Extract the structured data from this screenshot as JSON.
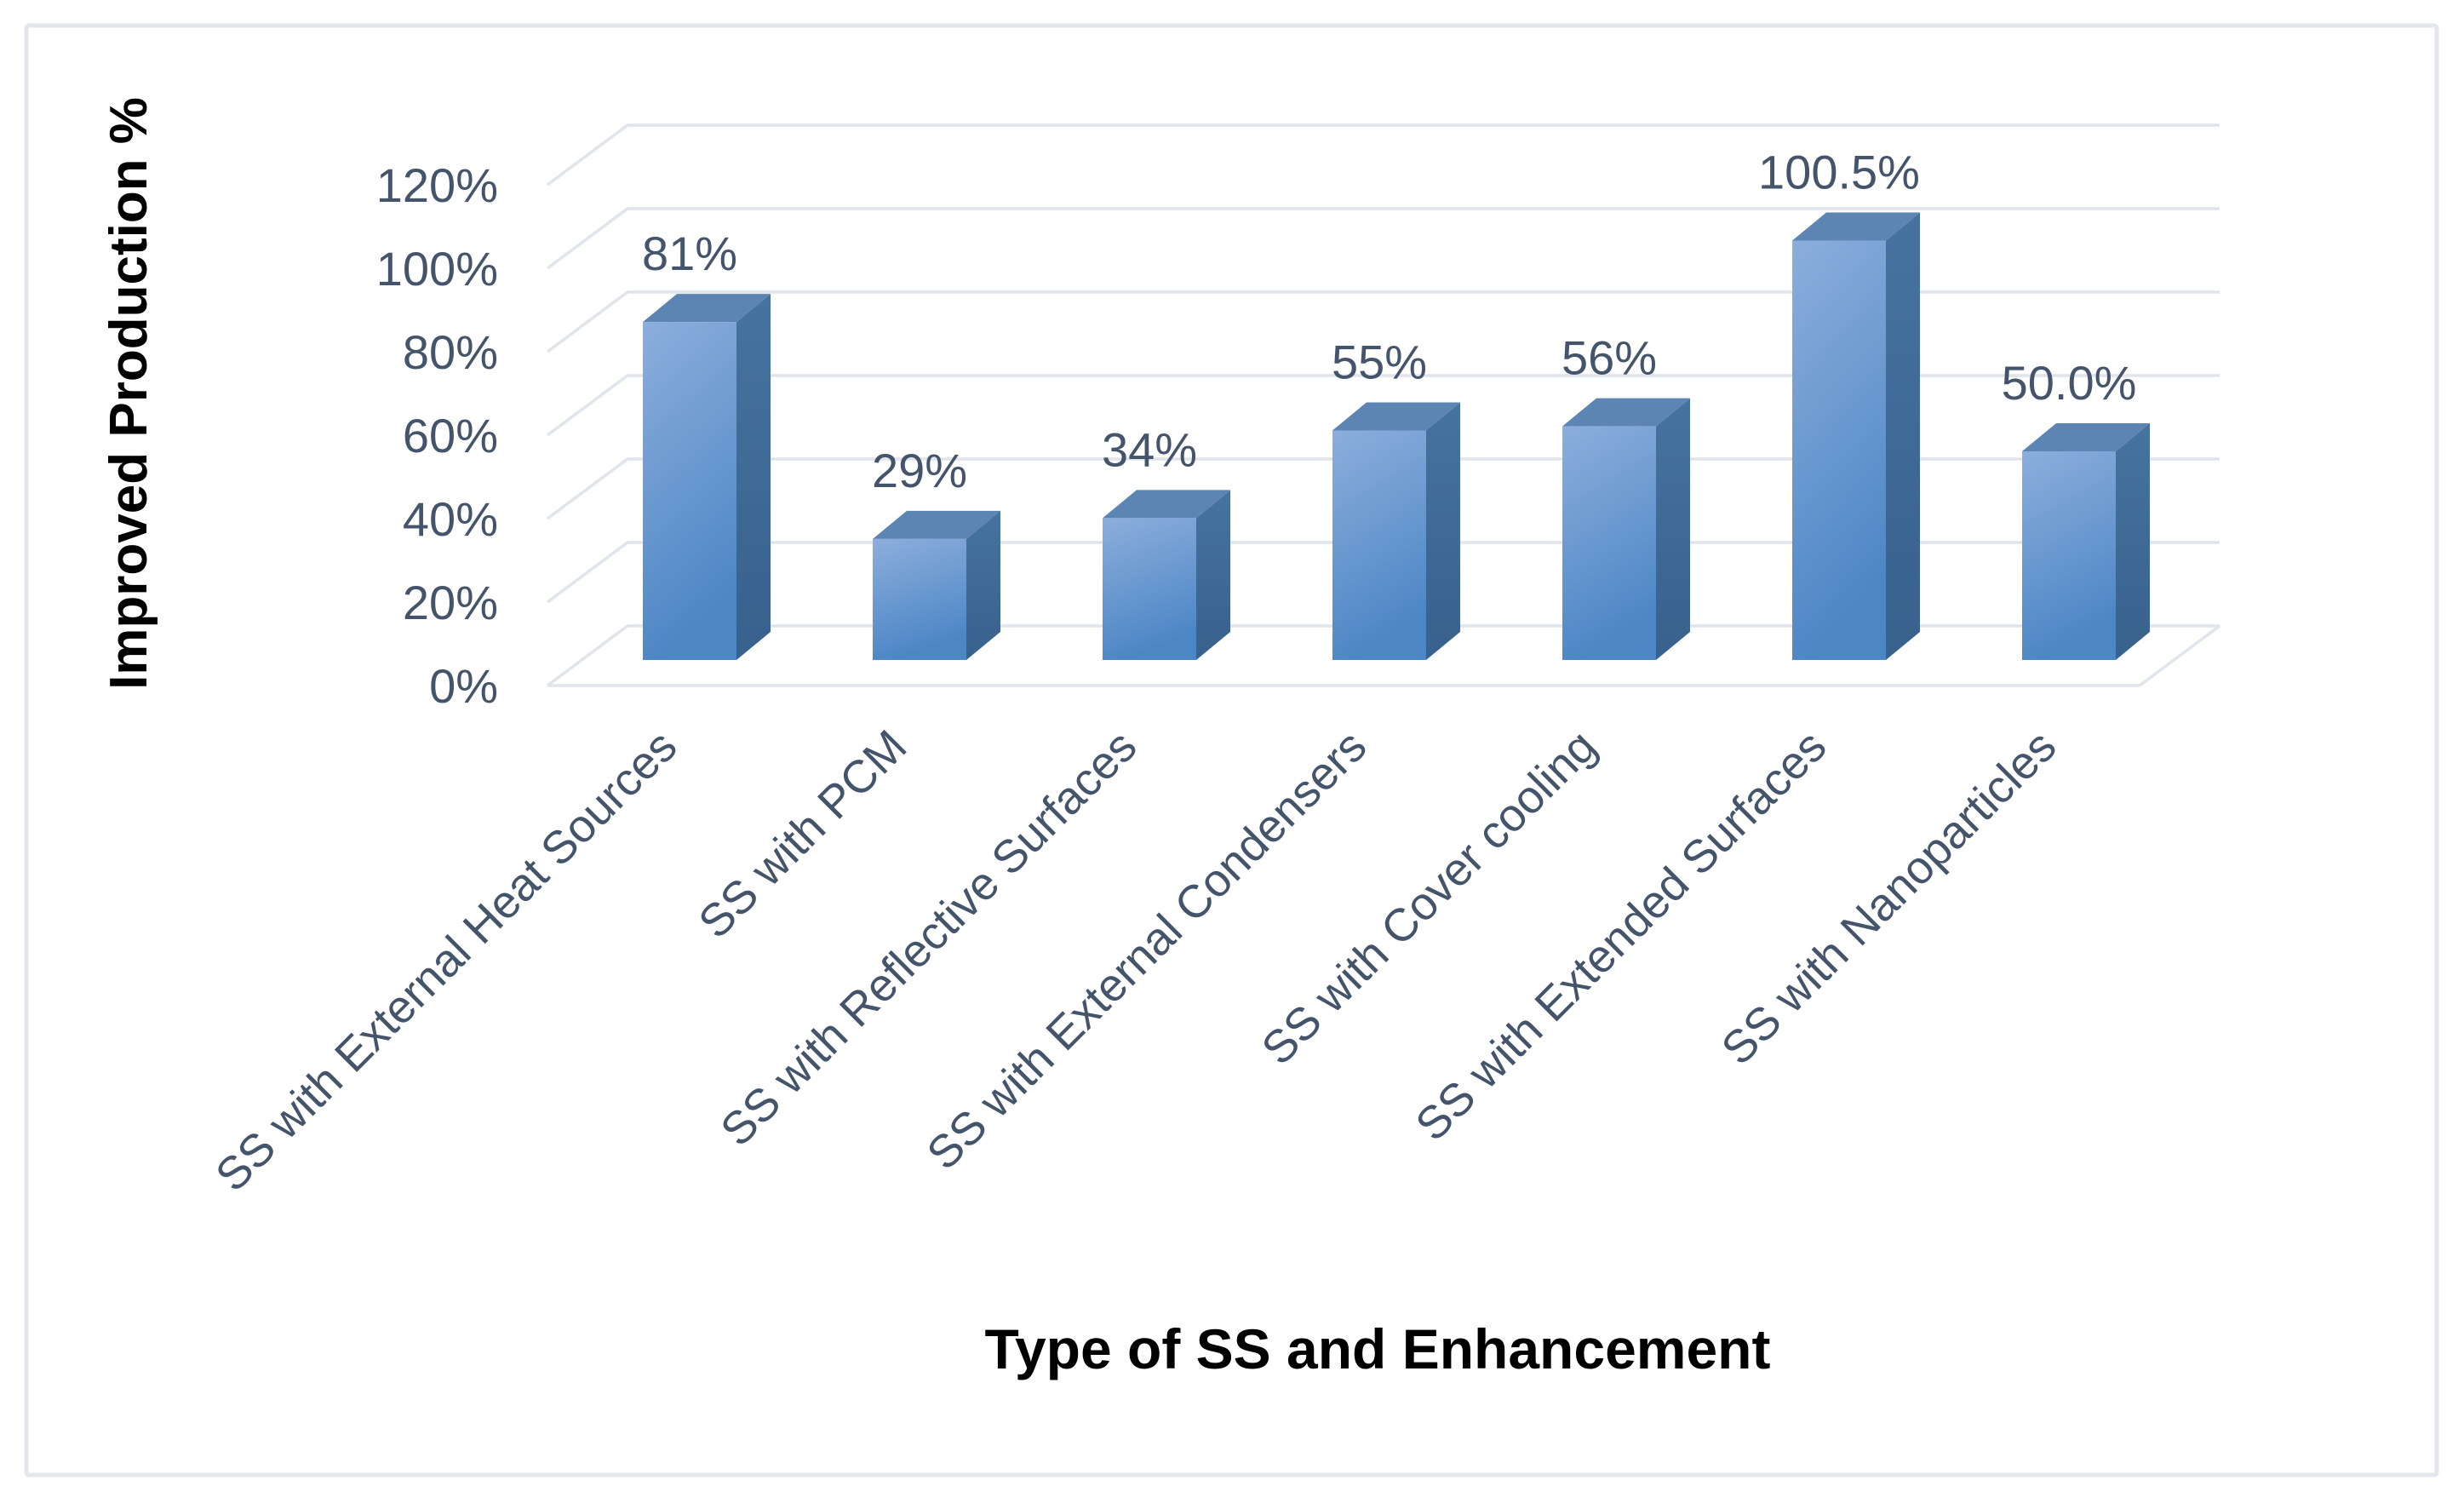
{
  "chart_data": {
    "type": "bar",
    "style": "3d-column",
    "title": "",
    "categories": [
      "SS with External Heat Sources",
      "SS with PCM",
      "SS with Reflective Surfaces",
      "SS with External Condensers",
      "SS with Cover cooling",
      "SS with Extended Surfaces",
      "SS with Nanoparticles"
    ],
    "values": [
      81,
      29,
      34,
      55,
      56,
      100.5,
      50
    ],
    "data_labels": [
      "81%",
      "29%",
      "34%",
      "55%",
      "56%",
      "100.5%",
      "50.0%"
    ],
    "xlabel": "Type of SS and Enhancement",
    "ylabel": "Improved Production %",
    "y_tick_values": [
      0,
      20,
      40,
      60,
      80,
      100,
      120
    ],
    "y_tick_labels": [
      "0%",
      "20%",
      "40%",
      "60%",
      "80%",
      "100%",
      "120%"
    ],
    "ylim": [
      0,
      120
    ],
    "grid": true,
    "legend": "none",
    "colors": {
      "bar_front_light": "#8CAEDC",
      "bar_front_dark": "#4C86C5",
      "bar_side": "#46739F",
      "bar_side_dark": "#38618C",
      "bar_top": "#5C85B3",
      "grid": "#E0E4EB",
      "label_text": "#44546A",
      "axis_title_text": "#000000",
      "border": "#E3E7ED",
      "background": "#FFFFFF"
    }
  }
}
